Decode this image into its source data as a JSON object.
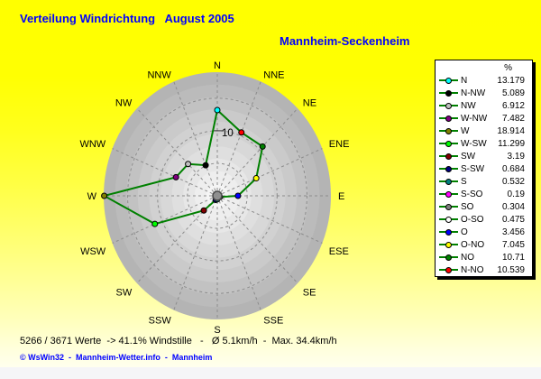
{
  "header": {
    "title": "Verteilung Windrichtung   August 2005",
    "station": "Mannheim-Seckenheim"
  },
  "footer": {
    "stats": "5266 / 3671 Werte  -> 41.1% Windstille   -   Ø 5.1km/h  -  Max. 34.4km/h",
    "credit": "© WsWin32  -  Mannheim-Wetter.info  -  Mannheim"
  },
  "colors": {
    "title_text": "#0000FF",
    "credit_text": "#0000FF",
    "polygon_line": "#008000",
    "grid_line": "#8C8C8C",
    "center_dot": "#8F8F8F",
    "band_outer": "#B4B4B4",
    "band_inner": "#F5F5F5",
    "legend_bg": "#FFFFFF"
  },
  "legend": {
    "header": "%"
  },
  "chart_data": {
    "type": "radar",
    "title": "Verteilung Windrichtung August 2005",
    "station": "Mannheim-Seckenheim",
    "units": "%",
    "rmax": 19,
    "grid_rings": [
      5,
      10,
      15
    ],
    "axis_tick": {
      "value": 10,
      "label": "10"
    },
    "grid": true,
    "legend_position": "right",
    "compass_labels": [
      "N",
      "NNE",
      "NE",
      "ENE",
      "E",
      "ESE",
      "SE",
      "SSE",
      "S",
      "SSW",
      "SW",
      "WSW",
      "W",
      "WNW",
      "NW",
      "NNW"
    ],
    "series": [
      {
        "label": "N",
        "display": "13.179",
        "value": 13.179,
        "color": "#00FFFF",
        "compass_index": 0
      },
      {
        "label": "N-NW",
        "display": "5.089",
        "value": 5.089,
        "color": "#000000",
        "compass_index": 15
      },
      {
        "label": "NW",
        "display": "6.912",
        "value": 6.912,
        "color": "#C0C0C0",
        "compass_index": 14
      },
      {
        "label": "W-NW",
        "display": "7.482",
        "value": 7.482,
        "color": "#800080",
        "compass_index": 13
      },
      {
        "label": "W",
        "display": "18.914",
        "value": 18.914,
        "color": "#808000",
        "compass_index": 12
      },
      {
        "label": "W-SW",
        "display": "11.299",
        "value": 11.299,
        "color": "#00FF00",
        "compass_index": 11
      },
      {
        "label": "SW",
        "display": "3.19",
        "value": 3.19,
        "color": "#800000",
        "compass_index": 10
      },
      {
        "label": "S-SW",
        "display": "0.684",
        "value": 0.684,
        "color": "#000080",
        "compass_index": 9
      },
      {
        "label": "S",
        "display": "0.532",
        "value": 0.532,
        "color": "#008080",
        "compass_index": 8
      },
      {
        "label": "S-SO",
        "display": "0.19",
        "value": 0.19,
        "color": "#FF00FF",
        "compass_index": 7
      },
      {
        "label": "SO",
        "display": "0.304",
        "value": 0.304,
        "color": "#808080",
        "compass_index": 6
      },
      {
        "label": "O-SO",
        "display": "0.475",
        "value": 0.475,
        "color": "#FFFFFF",
        "compass_index": 5
      },
      {
        "label": "O",
        "display": "3.456",
        "value": 3.456,
        "color": "#0000FF",
        "compass_index": 4
      },
      {
        "label": "O-NO",
        "display": "7.045",
        "value": 7.045,
        "color": "#FFFF00",
        "compass_index": 3
      },
      {
        "label": "NO",
        "display": "10.71",
        "value": 10.71,
        "color": "#008000",
        "compass_index": 2
      },
      {
        "label": "N-NO",
        "display": "10.539",
        "value": 10.539,
        "color": "#FF0000",
        "compass_index": 1
      }
    ]
  }
}
